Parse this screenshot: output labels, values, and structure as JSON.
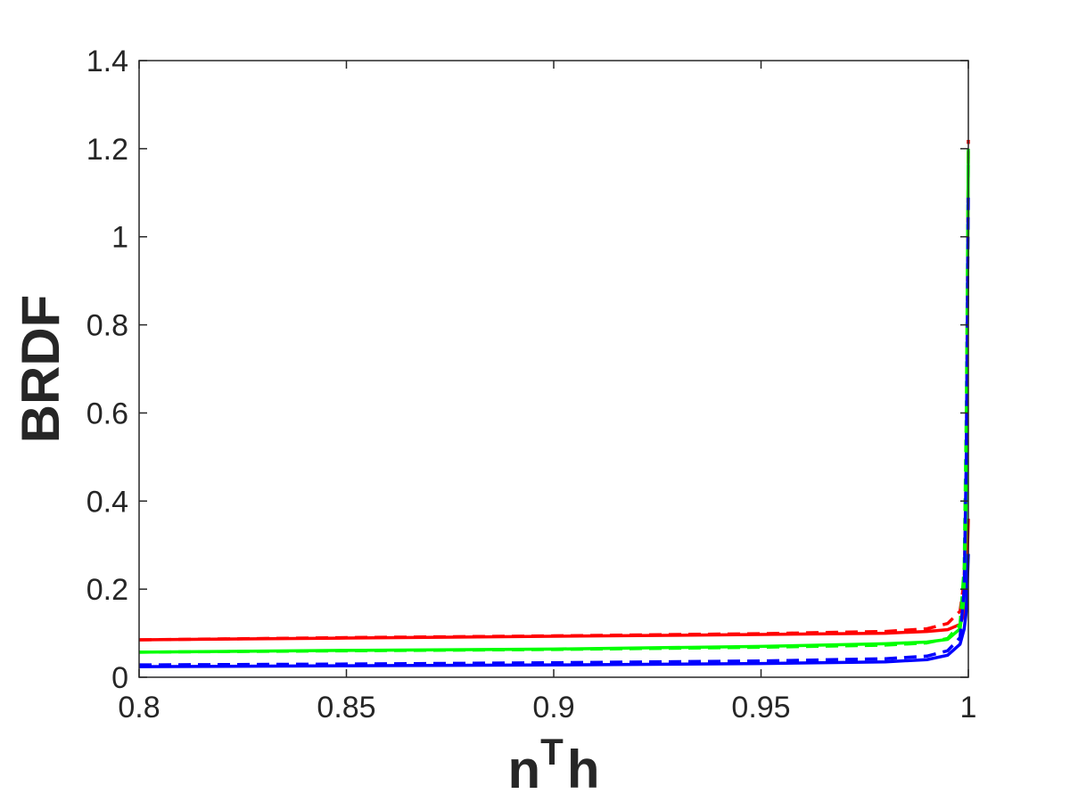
{
  "chart_data": {
    "type": "line",
    "xlabel": "n",
    "xlabel_superscript": "T",
    "xlabel_suffix": "h",
    "ylabel": "BRDF",
    "xlim": [
      0.8,
      1.0
    ],
    "ylim": [
      0,
      1.4
    ],
    "xticks": [
      0.8,
      0.85,
      0.9,
      0.95,
      1.0
    ],
    "xtick_labels": [
      "0.8",
      "0.85",
      "0.9",
      "0.95",
      "1"
    ],
    "yticks": [
      0,
      0.2,
      0.4,
      0.6,
      0.8,
      1.0,
      1.2,
      1.4
    ],
    "ytick_labels": [
      "0",
      "0.2",
      "0.4",
      "0.6",
      "0.8",
      "1",
      "1.2",
      "1.4"
    ],
    "grid": false,
    "box": true,
    "series": [
      {
        "color": "#ff0000",
        "style": "solid",
        "x": [
          0.8,
          0.85,
          0.9,
          0.95,
          0.98,
          0.99,
          0.995,
          0.998,
          0.999,
          0.9995,
          1.0
        ],
        "y": [
          0.085,
          0.089,
          0.093,
          0.097,
          0.1,
          0.104,
          0.108,
          0.12,
          0.145,
          0.2,
          0.36
        ]
      },
      {
        "color": "#ff0000",
        "style": "dashed",
        "x": [
          0.8,
          0.85,
          0.9,
          0.95,
          0.98,
          0.99,
          0.995,
          0.998,
          0.999,
          0.9995,
          1.0
        ],
        "y": [
          0.085,
          0.09,
          0.094,
          0.099,
          0.104,
          0.11,
          0.122,
          0.15,
          0.22,
          0.45,
          1.22
        ]
      },
      {
        "color": "#00ff00",
        "style": "solid",
        "x": [
          0.8,
          0.85,
          0.9,
          0.95,
          0.98,
          0.99,
          0.995,
          0.998,
          0.999,
          0.9995,
          1.0
        ],
        "y": [
          0.057,
          0.061,
          0.064,
          0.07,
          0.076,
          0.08,
          0.086,
          0.11,
          0.18,
          0.4,
          1.2
        ]
      },
      {
        "color": "#00ff00",
        "style": "dashed",
        "x": [
          0.8,
          0.85,
          0.9,
          0.95,
          0.98,
          0.99,
          0.995,
          0.998,
          0.999,
          0.9995,
          1.0
        ],
        "y": [
          0.057,
          0.06,
          0.063,
          0.068,
          0.073,
          0.078,
          0.088,
          0.12,
          0.25,
          0.6,
          1.18
        ]
      },
      {
        "color": "#0000ff",
        "style": "solid",
        "x": [
          0.8,
          0.85,
          0.9,
          0.95,
          0.98,
          0.99,
          0.995,
          0.998,
          0.999,
          0.9995,
          1.0
        ],
        "y": [
          0.024,
          0.026,
          0.028,
          0.031,
          0.035,
          0.04,
          0.05,
          0.075,
          0.11,
          0.15,
          0.28
        ]
      },
      {
        "color": "#0000ff",
        "style": "dashed",
        "x": [
          0.8,
          0.85,
          0.9,
          0.95,
          0.98,
          0.99,
          0.995,
          0.998,
          0.999,
          0.9995,
          1.0
        ],
        "y": [
          0.028,
          0.03,
          0.033,
          0.037,
          0.042,
          0.048,
          0.06,
          0.09,
          0.2,
          0.5,
          1.1
        ]
      }
    ]
  }
}
